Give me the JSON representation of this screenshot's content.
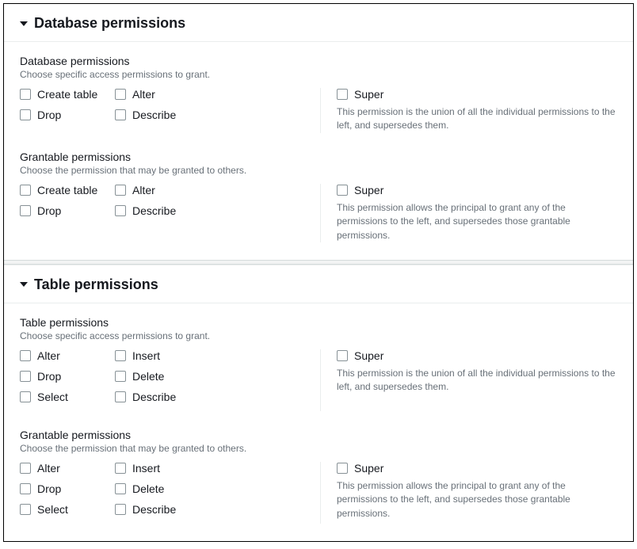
{
  "panels": [
    {
      "title": "Database permissions",
      "sections": [
        {
          "title": "Database permissions",
          "desc": "Choose specific access permissions to grant.",
          "options": [
            "Create table",
            "Alter",
            "Drop",
            "Describe"
          ],
          "super_label": "Super",
          "super_desc": "This permission is the union of all the individual permissions to the left, and supersedes them."
        },
        {
          "title": "Grantable permissions",
          "desc": "Choose the permission that may be granted to others.",
          "options": [
            "Create table",
            "Alter",
            "Drop",
            "Describe"
          ],
          "super_label": "Super",
          "super_desc": "This permission allows the principal to grant any of the permissions to the left, and supersedes those grantable permissions."
        }
      ]
    },
    {
      "title": "Table permissions",
      "sections": [
        {
          "title": "Table permissions",
          "desc": "Choose specific access permissions to grant.",
          "options": [
            "Alter",
            "Insert",
            "Drop",
            "Delete",
            "Select",
            "Describe"
          ],
          "super_label": "Super",
          "super_desc": "This permission is the union of all the individual permissions to the left, and supersedes them."
        },
        {
          "title": "Grantable permissions",
          "desc": "Choose the permission that may be granted to others.",
          "options": [
            "Alter",
            "Insert",
            "Drop",
            "Delete",
            "Select",
            "Describe"
          ],
          "super_label": "Super",
          "super_desc": "This permission allows the principal to grant any of the permissions to the left, and supersedes those grantable permissions."
        }
      ]
    }
  ]
}
